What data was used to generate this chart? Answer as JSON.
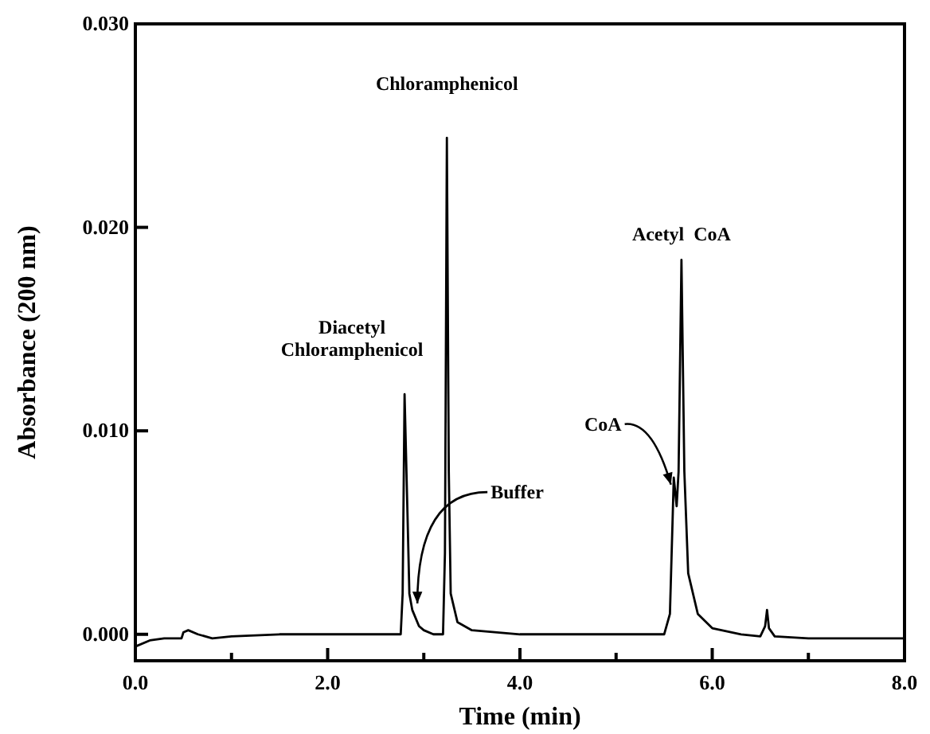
{
  "chart_data": {
    "type": "line",
    "xlabel": "Time (min)",
    "ylabel": "Absorbance (200 nm)",
    "x": [
      0,
      0.15,
      0.3,
      0.48,
      0.5,
      0.55,
      0.65,
      0.8,
      1.0,
      1.5,
      2.5,
      2.76,
      2.78,
      2.8,
      2.83,
      2.85,
      2.88,
      2.95,
      3.0,
      3.1,
      3.2,
      3.22,
      3.24,
      3.26,
      3.28,
      3.35,
      3.5,
      4.0,
      5.5,
      5.56,
      5.59,
      5.6,
      5.63,
      5.65,
      5.68,
      5.71,
      5.75,
      5.85,
      6.0,
      6.3,
      6.5,
      6.55,
      6.57,
      6.59,
      6.65,
      7.0,
      8.0
    ],
    "series": [
      {
        "color": "#000000",
        "values": [
          -0.0006,
          -0.0003,
          -0.0002,
          -0.0002,
          0.0001,
          0.0002,
          0.0,
          -0.0002,
          -0.0001,
          0,
          0,
          0,
          0.002,
          0.0118,
          0.006,
          0.002,
          0.0012,
          0.0004,
          0.0002,
          0,
          0,
          0.004,
          0.0244,
          0.008,
          0.002,
          0.0006,
          0.0002,
          0,
          0,
          0.001,
          0.006,
          0.0077,
          0.0063,
          0.008,
          0.0184,
          0.008,
          0.003,
          0.001,
          0.0003,
          0,
          -0.0001,
          0.0004,
          0.0012,
          0.0003,
          -0.0001,
          -0.0002,
          -0.0002
        ]
      }
    ],
    "xlim": [
      0,
      8
    ],
    "xticks": [
      {
        "value": 0,
        "label": "0.0"
      },
      {
        "value": 1,
        "label": null
      },
      {
        "value": 2,
        "label": "2.0"
      },
      {
        "value": 3,
        "label": null
      },
      {
        "value": 4,
        "label": "4.0"
      },
      {
        "value": 5,
        "label": null
      },
      {
        "value": 6,
        "label": "6.0"
      },
      {
        "value": 7,
        "label": null
      },
      {
        "value": 8,
        "label": "8.0"
      }
    ],
    "ylim": [
      -0.0013,
      0.03
    ],
    "yticks": [
      {
        "value": 0,
        "label": "0.000"
      },
      {
        "value": 0.01,
        "label": "0.010"
      },
      {
        "value": 0.02,
        "label": "0.020"
      },
      {
        "value": 0.03,
        "label": "0.030"
      }
    ],
    "grid": false,
    "marker": "none",
    "line_style": "solid",
    "annotations": [
      {
        "text": "Diacetyl\nChloramphenicol",
        "x": 2.8,
        "y": 0.0118
      },
      {
        "text": "Chloramphenicol",
        "x": 3.24,
        "y": 0.0244
      },
      {
        "text": "Acetyl  CoA",
        "x": 5.68,
        "y": 0.0184
      },
      {
        "text": "Buffer",
        "x": 2.9,
        "y": 0.0012
      },
      {
        "text": "CoA",
        "x": 5.62,
        "y": 0.0072
      }
    ]
  }
}
